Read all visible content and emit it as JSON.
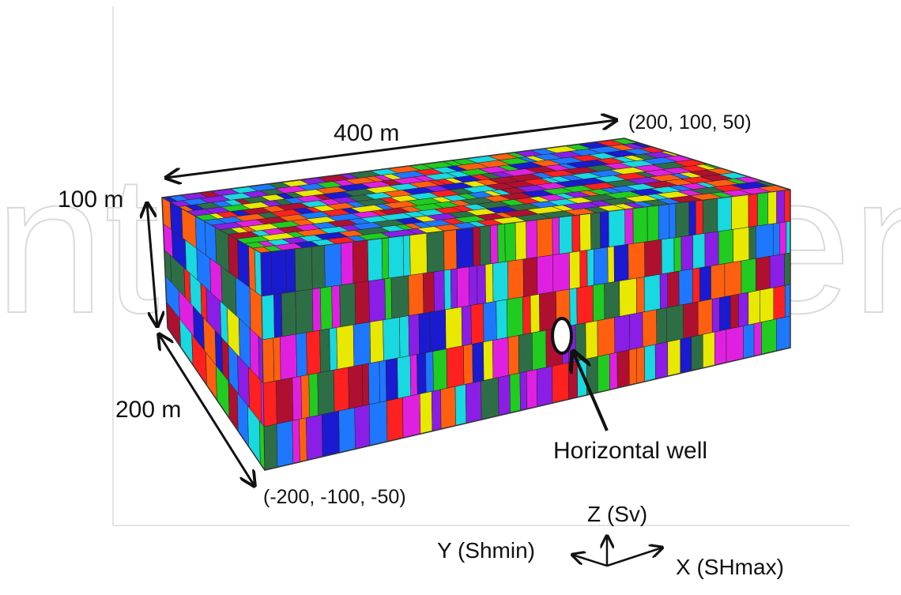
{
  "watermark": "IntechOpen",
  "dimensions": {
    "length": "400 m",
    "height": "100 m",
    "width": "200 m"
  },
  "corners": {
    "max": "(200, 100, 50)",
    "min": "(-200, -100, -50)"
  },
  "well": {
    "label": "Horizontal well"
  },
  "axes": {
    "z": "Z (Sv)",
    "y": "Y (Shmin)",
    "x": "X (SHmax)"
  },
  "block_colors": [
    "#e8e800",
    "#ff2020",
    "#1e78ff",
    "#20cc20",
    "#e020e0",
    "#8a1ee6",
    "#18d8e0",
    "#2e6e46",
    "#b01030",
    "#ff6010",
    "#1a1ad0"
  ]
}
